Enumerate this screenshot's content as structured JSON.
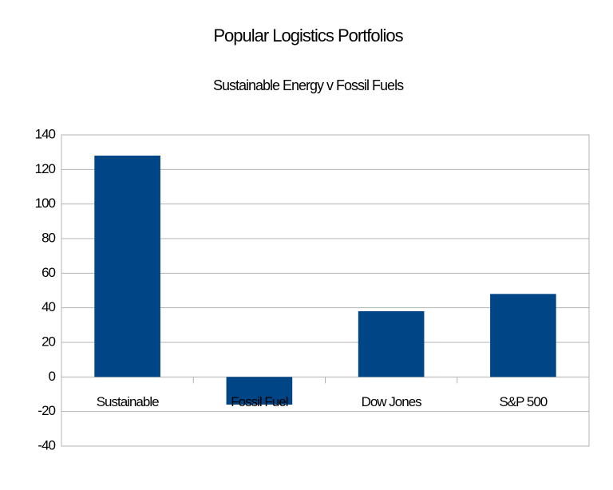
{
  "chart_data": {
    "type": "bar",
    "title": "Popular Logistics Portfolios",
    "subtitle": "Sustainable Energy v Fossil Fuels",
    "categories": [
      "Sustainable",
      "Fossil Fuel",
      "Dow Jones",
      "S&P 500"
    ],
    "values": [
      128,
      -16,
      38,
      48
    ],
    "color": "#004586",
    "ylim": [
      -40,
      140
    ],
    "yticks": [
      -40,
      -20,
      0,
      20,
      40,
      60,
      80,
      100,
      120,
      140
    ],
    "grid": true
  }
}
